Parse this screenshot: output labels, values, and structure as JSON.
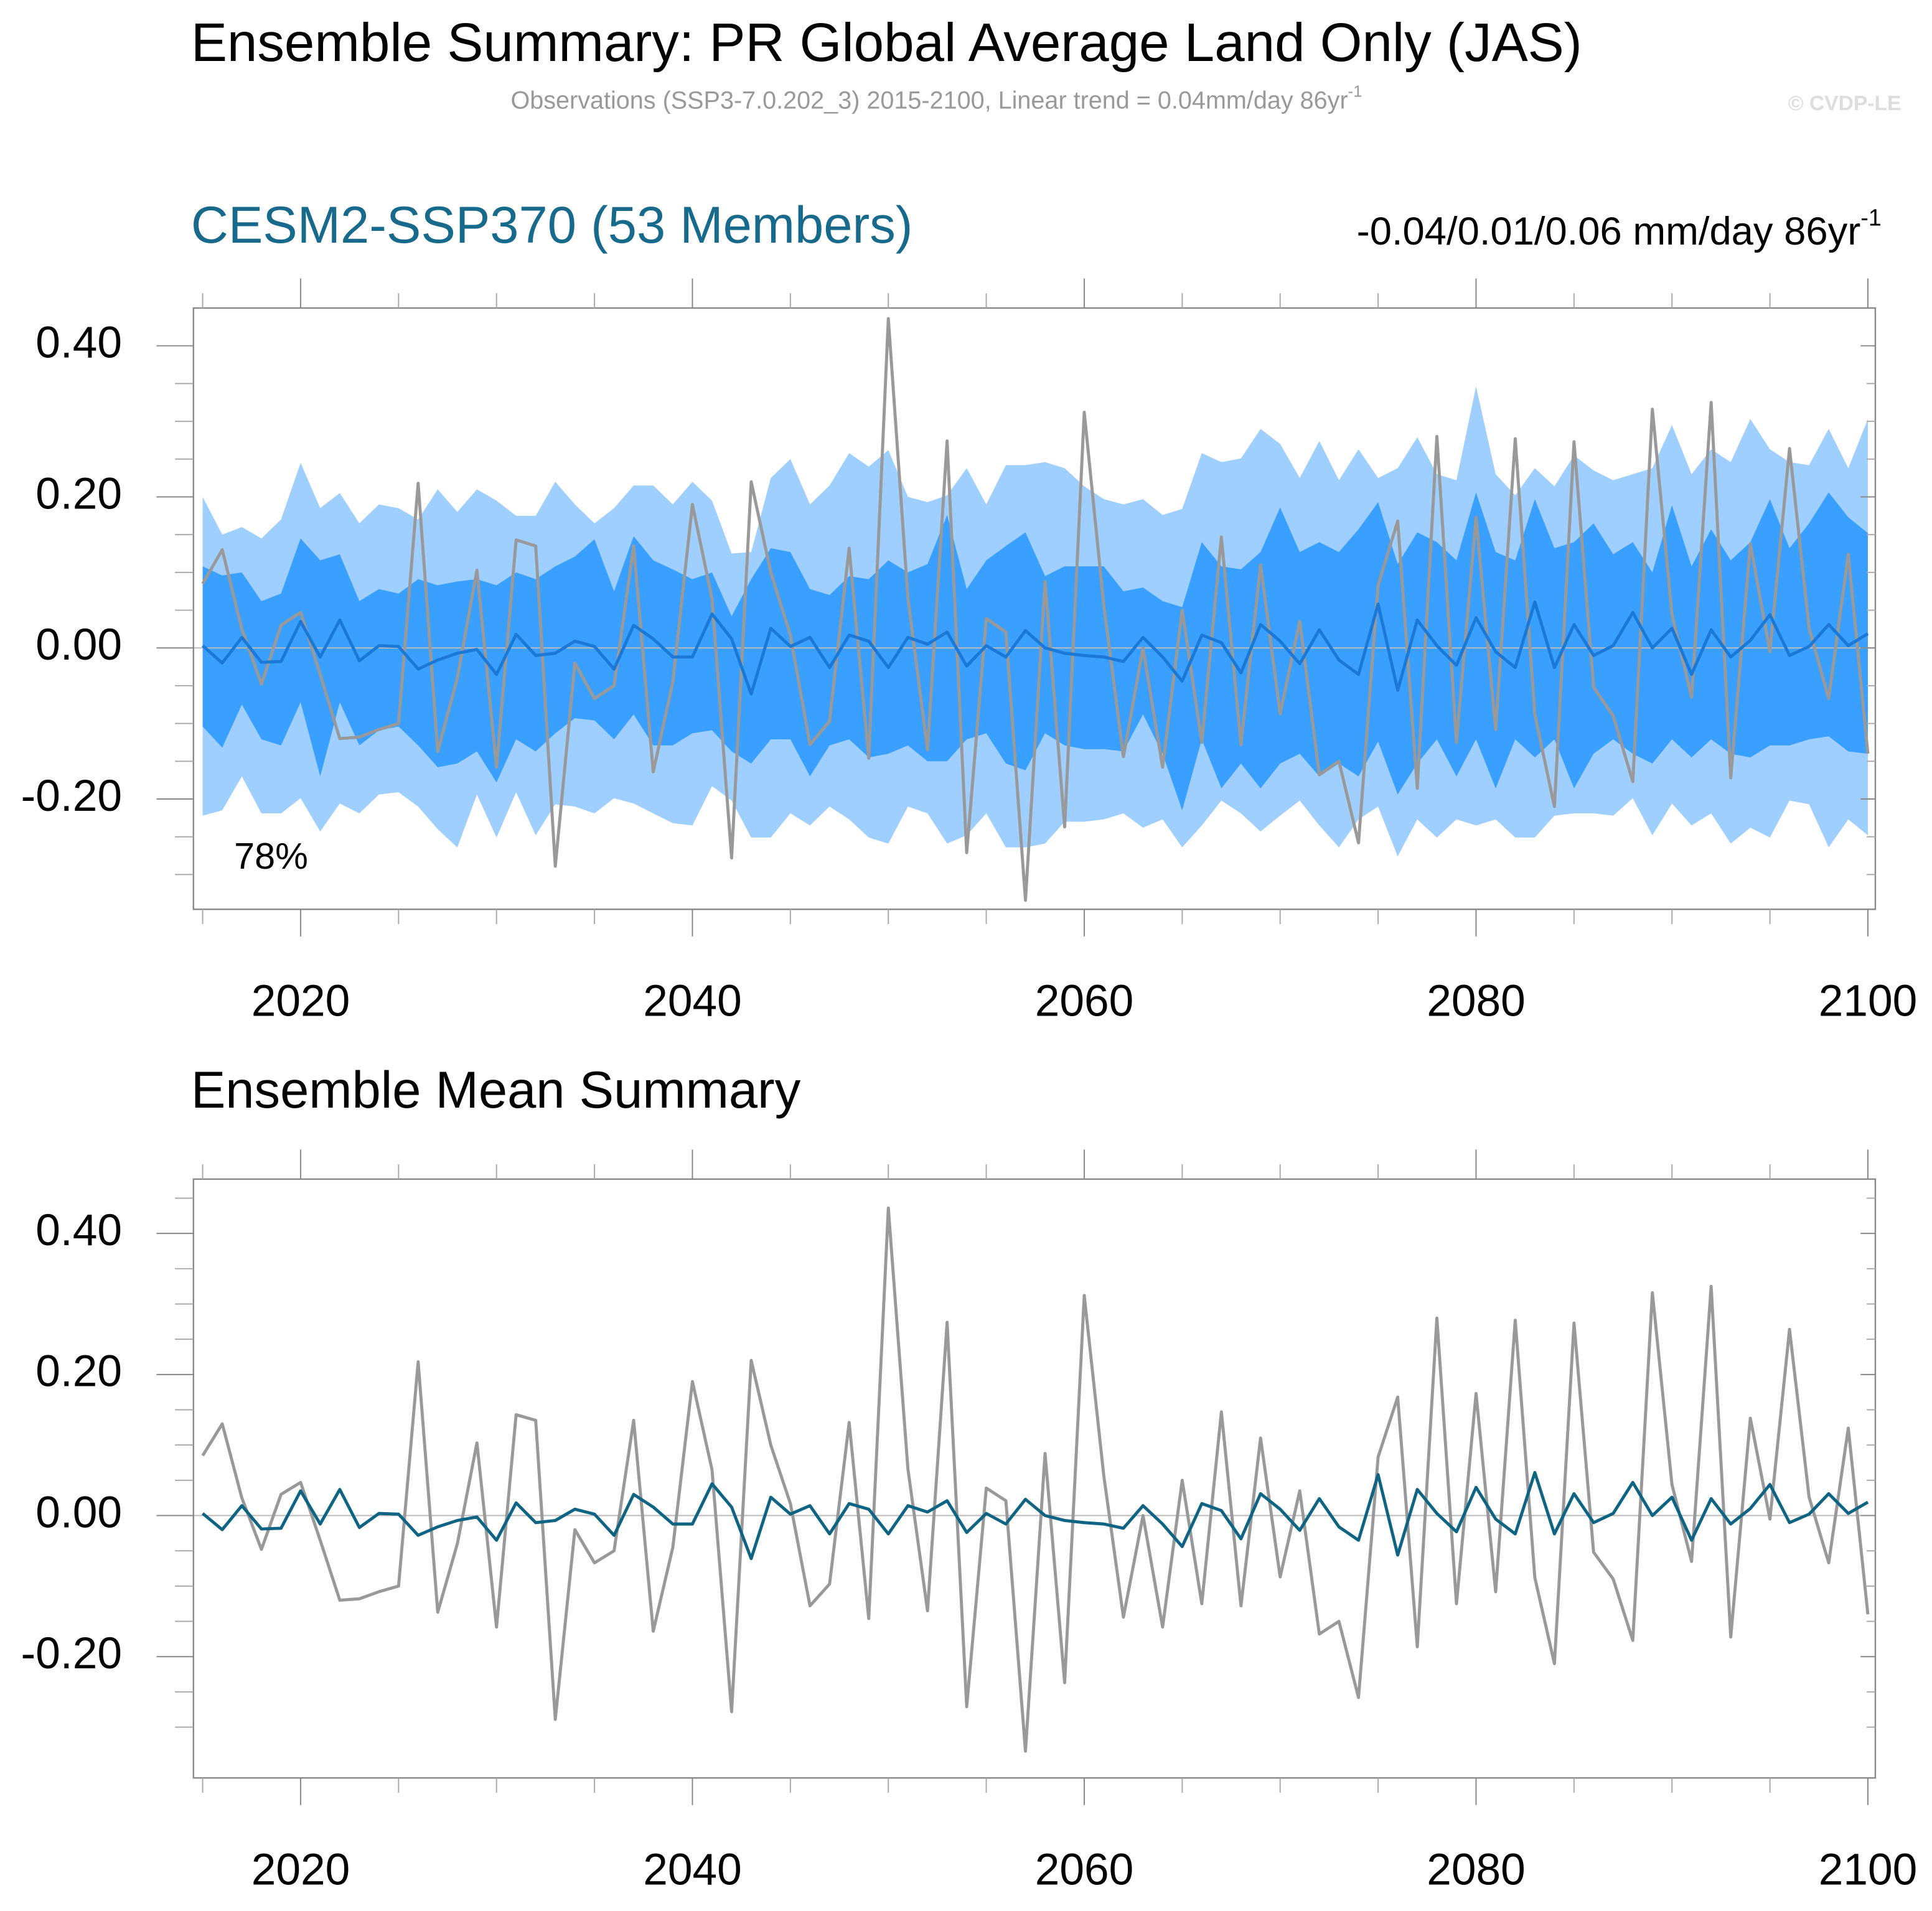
{
  "title": "Ensemble Summary: PR Global Average Land Only (JAS)",
  "subtitle": "Observations (SSP3-7.0.202_3) 2015-2100, Linear trend = 0.04mm/day 86yr",
  "subtitle_superscript": "-1",
  "credit": "© CVDP-LE",
  "chart_data": [
    {
      "type": "line",
      "title": "CESM2-SSP370 (53 Members)",
      "trend": "-0.04/0.01/0.06 mm/day 86yr",
      "trend_superscript": "-1",
      "annotation": "78%",
      "x": [
        2015,
        2016,
        2017,
        2018,
        2019,
        2020,
        2021,
        2022,
        2023,
        2024,
        2025,
        2026,
        2027,
        2028,
        2029,
        2030,
        2031,
        2032,
        2033,
        2034,
        2035,
        2036,
        2037,
        2038,
        2039,
        2040,
        2041,
        2042,
        2043,
        2044,
        2045,
        2046,
        2047,
        2048,
        2049,
        2050,
        2051,
        2052,
        2053,
        2054,
        2055,
        2056,
        2057,
        2058,
        2059,
        2060,
        2061,
        2062,
        2063,
        2064,
        2065,
        2066,
        2067,
        2068,
        2069,
        2070,
        2071,
        2072,
        2073,
        2074,
        2075,
        2076,
        2077,
        2078,
        2079,
        2080,
        2081,
        2082,
        2083,
        2084,
        2085,
        2086,
        2087,
        2088,
        2089,
        2090,
        2091,
        2092,
        2093,
        2094,
        2095,
        2096,
        2097,
        2098,
        2099,
        2100
      ],
      "bands": [
        {
          "color": "#9fcfff",
          "upper": [
            0.2,
            0.15,
            0.16,
            0.145,
            0.17,
            0.245,
            0.185,
            0.205,
            0.165,
            0.19,
            0.185,
            0.17,
            0.21,
            0.18,
            0.21,
            0.195,
            0.175,
            0.175,
            0.22,
            0.19,
            0.165,
            0.185,
            0.215,
            0.215,
            0.19,
            0.22,
            0.195,
            0.125,
            0.127,
            0.225,
            0.25,
            0.19,
            0.215,
            0.258,
            0.24,
            0.262,
            0.2,
            0.193,
            0.202,
            0.238,
            0.19,
            0.242,
            0.242,
            0.246,
            0.238,
            0.214,
            0.197,
            0.19,
            0.197,
            0.176,
            0.184,
            0.258,
            0.246,
            0.251,
            0.29,
            0.27,
            0.225,
            0.274,
            0.222,
            0.263,
            0.225,
            0.238,
            0.279,
            0.23,
            0.222,
            0.346,
            0.23,
            0.202,
            0.238,
            0.214,
            0.255,
            0.235,
            0.222,
            0.23,
            0.238,
            0.295,
            0.23,
            0.263,
            0.246,
            0.303,
            0.263,
            0.246,
            0.242,
            0.29,
            0.238,
            0.303
          ],
          "lower": [
            -0.222,
            -0.215,
            -0.17,
            -0.219,
            -0.219,
            -0.199,
            -0.243,
            -0.206,
            -0.219,
            -0.194,
            -0.191,
            -0.21,
            -0.24,
            -0.264,
            -0.194,
            -0.251,
            -0.191,
            -0.248,
            -0.207,
            -0.21,
            -0.219,
            -0.199,
            -0.206,
            -0.219,
            -0.232,
            -0.235,
            -0.183,
            -0.202,
            -0.251,
            -0.251,
            -0.219,
            -0.235,
            -0.21,
            -0.227,
            -0.251,
            -0.259,
            -0.21,
            -0.219,
            -0.259,
            -0.248,
            -0.219,
            -0.264,
            -0.264,
            -0.259,
            -0.23,
            -0.23,
            -0.227,
            -0.219,
            -0.238,
            -0.227,
            -0.264,
            -0.235,
            -0.202,
            -0.219,
            -0.243,
            -0.222,
            -0.202,
            -0.235,
            -0.264,
            -0.227,
            -0.21,
            -0.276,
            -0.227,
            -0.251,
            -0.227,
            -0.235,
            -0.227,
            -0.251,
            -0.251,
            -0.222,
            -0.219,
            -0.219,
            -0.222,
            -0.199,
            -0.248,
            -0.206,
            -0.235,
            -0.219,
            -0.259,
            -0.238,
            -0.251,
            -0.202,
            -0.207,
            -0.264,
            -0.227,
            -0.248
          ]
        },
        {
          "color": "#3aa0ff",
          "upper": [
            0.108,
            0.096,
            0.1,
            0.062,
            0.072,
            0.145,
            0.116,
            0.124,
            0.062,
            0.078,
            0.072,
            0.091,
            0.083,
            0.088,
            0.091,
            0.083,
            0.1,
            0.091,
            0.108,
            0.121,
            0.144,
            0.075,
            0.148,
            0.116,
            0.104,
            0.091,
            0.1,
            0.042,
            0.091,
            0.132,
            0.127,
            0.078,
            0.07,
            0.095,
            0.091,
            0.116,
            0.1,
            0.111,
            0.176,
            0.078,
            0.116,
            0.135,
            0.153,
            0.095,
            0.108,
            0.108,
            0.108,
            0.075,
            0.08,
            0.062,
            0.054,
            0.14,
            0.108,
            0.104,
            0.127,
            0.186,
            0.127,
            0.14,
            0.127,
            0.157,
            0.193,
            0.111,
            0.153,
            0.14,
            0.116,
            0.206,
            0.127,
            0.116,
            0.197,
            0.132,
            0.14,
            0.165,
            0.124,
            0.14,
            0.1,
            0.189,
            0.108,
            0.157,
            0.116,
            0.14,
            0.197,
            0.132,
            0.165,
            0.206,
            0.173,
            0.152
          ],
          "lower": [
            -0.104,
            -0.132,
            -0.075,
            -0.121,
            -0.129,
            -0.072,
            -0.17,
            -0.072,
            -0.129,
            -0.109,
            -0.104,
            -0.129,
            -0.158,
            -0.153,
            -0.137,
            -0.178,
            -0.121,
            -0.137,
            -0.113,
            -0.093,
            -0.096,
            -0.121,
            -0.088,
            -0.129,
            -0.129,
            -0.113,
            -0.109,
            -0.137,
            -0.153,
            -0.121,
            -0.121,
            -0.17,
            -0.129,
            -0.121,
            -0.145,
            -0.14,
            -0.129,
            -0.15,
            -0.15,
            -0.121,
            -0.113,
            -0.153,
            -0.162,
            -0.113,
            -0.129,
            -0.134,
            -0.134,
            -0.137,
            -0.088,
            -0.14,
            -0.215,
            -0.121,
            -0.186,
            -0.153,
            -0.186,
            -0.153,
            -0.14,
            -0.17,
            -0.153,
            -0.17,
            -0.124,
            -0.194,
            -0.153,
            -0.121,
            -0.17,
            -0.121,
            -0.186,
            -0.121,
            -0.145,
            -0.121,
            -0.186,
            -0.14,
            -0.121,
            -0.14,
            -0.153,
            -0.121,
            -0.145,
            -0.121,
            -0.14,
            -0.145,
            -0.129,
            -0.129,
            -0.121,
            -0.117,
            -0.137,
            -0.14
          ]
        }
      ],
      "series": [
        {
          "color": "#999999",
          "values": [
            0.085,
            0.13,
            0.025,
            -0.048,
            0.03,
            0.047,
            -0.035,
            -0.12,
            -0.118,
            -0.108,
            -0.1,
            0.218,
            -0.137,
            -0.04,
            0.103,
            -0.158,
            0.143,
            0.135,
            -0.289,
            -0.02,
            -0.067,
            -0.05,
            0.135,
            -0.164,
            -0.045,
            0.19,
            0.065,
            -0.278,
            0.22,
            0.1,
            0.017,
            -0.128,
            -0.097,
            0.132,
            -0.146,
            0.436,
            0.066,
            -0.135,
            0.274,
            -0.271,
            0.039,
            0.021,
            -0.334,
            0.088,
            -0.237,
            0.312,
            0.056,
            -0.144,
            0.0,
            -0.158,
            0.05,
            -0.125,
            0.147,
            -0.128,
            0.11,
            -0.087,
            0.035,
            -0.168,
            -0.15,
            -0.258,
            0.083,
            0.168,
            -0.186,
            0.28,
            -0.125,
            0.173,
            -0.108,
            0.277,
            -0.088,
            -0.21,
            0.273,
            -0.052,
            -0.09,
            -0.177,
            0.316,
            0.044,
            -0.065,
            0.325,
            -0.172,
            0.138,
            -0.005,
            0.264,
            0.026,
            -0.067,
            0.124,
            -0.14
          ]
        },
        {
          "color": "#1a78d6",
          "values": [
            0.003,
            -0.02,
            0.014,
            -0.019,
            -0.018,
            0.035,
            -0.012,
            0.037,
            -0.017,
            0.003,
            0.002,
            -0.028,
            -0.016,
            -0.007,
            -0.002,
            -0.035,
            0.018,
            -0.01,
            -0.007,
            0.009,
            0.002,
            -0.028,
            0.03,
            0.012,
            -0.012,
            -0.012,
            0.045,
            0.012,
            -0.061,
            0.026,
            0.002,
            0.014,
            -0.026,
            0.017,
            0.009,
            -0.026,
            0.014,
            0.005,
            0.021,
            -0.024,
            0.003,
            -0.012,
            0.023,
            0.0,
            -0.007,
            -0.01,
            -0.012,
            -0.018,
            0.014,
            -0.012,
            -0.044,
            0.017,
            0.007,
            -0.033,
            0.031,
            0.009,
            -0.021,
            0.024,
            -0.016,
            -0.035,
            0.058,
            -0.056,
            0.037,
            0.003,
            -0.023,
            0.04,
            -0.005,
            -0.026,
            0.061,
            -0.026,
            0.031,
            -0.01,
            0.003,
            0.047,
            0.0,
            0.026,
            -0.035,
            0.024,
            -0.012,
            0.01,
            0.044,
            -0.01,
            0.002,
            0.031,
            0.003,
            0.019
          ]
        }
      ],
      "reference_line": 0,
      "xlim": [
        2014.53,
        2100.38
      ],
      "xticks": [
        2020,
        2040,
        2060,
        2080,
        2100
      ],
      "xminorticks": [
        2015,
        2025,
        2030,
        2035,
        2045,
        2050,
        2055,
        2065,
        2070,
        2075,
        2085,
        2090,
        2095
      ],
      "ylim": [
        -0.346,
        0.45
      ],
      "yticks": [
        {
          "value": -0.2,
          "label": "-0.20"
        },
        {
          "value": 0,
          "label": "0.00"
        },
        {
          "value": 0.2,
          "label": "0.20"
        },
        {
          "value": 0.4,
          "label": "0.40"
        }
      ],
      "yminorticks": [
        -0.3,
        -0.25,
        -0.15,
        -0.1,
        -0.05,
        0.05,
        0.1,
        0.15,
        0.25,
        0.3,
        0.35
      ]
    },
    {
      "type": "line",
      "title": "Ensemble Mean Summary",
      "x": [
        2015,
        2016,
        2017,
        2018,
        2019,
        2020,
        2021,
        2022,
        2023,
        2024,
        2025,
        2026,
        2027,
        2028,
        2029,
        2030,
        2031,
        2032,
        2033,
        2034,
        2035,
        2036,
        2037,
        2038,
        2039,
        2040,
        2041,
        2042,
        2043,
        2044,
        2045,
        2046,
        2047,
        2048,
        2049,
        2050,
        2051,
        2052,
        2053,
        2054,
        2055,
        2056,
        2057,
        2058,
        2059,
        2060,
        2061,
        2062,
        2063,
        2064,
        2065,
        2066,
        2067,
        2068,
        2069,
        2070,
        2071,
        2072,
        2073,
        2074,
        2075,
        2076,
        2077,
        2078,
        2079,
        2080,
        2081,
        2082,
        2083,
        2084,
        2085,
        2086,
        2087,
        2088,
        2089,
        2090,
        2091,
        2092,
        2093,
        2094,
        2095,
        2096,
        2097,
        2098,
        2099,
        2100
      ],
      "series": [
        {
          "color": "#999999",
          "values": [
            0.085,
            0.13,
            0.025,
            -0.048,
            0.03,
            0.047,
            -0.035,
            -0.12,
            -0.118,
            -0.108,
            -0.1,
            0.218,
            -0.137,
            -0.04,
            0.103,
            -0.158,
            0.143,
            0.135,
            -0.289,
            -0.02,
            -0.067,
            -0.05,
            0.135,
            -0.164,
            -0.045,
            0.19,
            0.065,
            -0.278,
            0.22,
            0.1,
            0.017,
            -0.128,
            -0.097,
            0.132,
            -0.146,
            0.436,
            0.066,
            -0.135,
            0.274,
            -0.271,
            0.039,
            0.021,
            -0.334,
            0.088,
            -0.237,
            0.312,
            0.056,
            -0.144,
            0.0,
            -0.158,
            0.05,
            -0.125,
            0.147,
            -0.128,
            0.11,
            -0.087,
            0.035,
            -0.168,
            -0.15,
            -0.258,
            0.083,
            0.168,
            -0.186,
            0.28,
            -0.125,
            0.173,
            -0.108,
            0.277,
            -0.088,
            -0.21,
            0.273,
            -0.052,
            -0.09,
            -0.177,
            0.316,
            0.044,
            -0.065,
            0.325,
            -0.172,
            0.138,
            -0.005,
            0.264,
            0.026,
            -0.067,
            0.124,
            -0.14
          ]
        },
        {
          "color": "#0e6482",
          "values": [
            0.003,
            -0.02,
            0.014,
            -0.019,
            -0.018,
            0.035,
            -0.012,
            0.037,
            -0.017,
            0.003,
            0.002,
            -0.028,
            -0.016,
            -0.007,
            -0.002,
            -0.035,
            0.018,
            -0.01,
            -0.007,
            0.009,
            0.002,
            -0.028,
            0.03,
            0.012,
            -0.012,
            -0.012,
            0.045,
            0.012,
            -0.061,
            0.026,
            0.002,
            0.014,
            -0.026,
            0.017,
            0.009,
            -0.026,
            0.014,
            0.005,
            0.021,
            -0.024,
            0.003,
            -0.012,
            0.023,
            0.0,
            -0.007,
            -0.01,
            -0.012,
            -0.018,
            0.014,
            -0.012,
            -0.044,
            0.017,
            0.007,
            -0.033,
            0.031,
            0.009,
            -0.021,
            0.024,
            -0.016,
            -0.035,
            0.058,
            -0.056,
            0.037,
            0.003,
            -0.023,
            0.04,
            -0.005,
            -0.026,
            0.061,
            -0.026,
            0.031,
            -0.01,
            0.003,
            0.047,
            0.0,
            0.026,
            -0.035,
            0.024,
            -0.012,
            0.01,
            0.044,
            -0.01,
            0.002,
            0.031,
            0.003,
            0.019
          ]
        }
      ],
      "reference_line": 0,
      "xlim": [
        2014.53,
        2100.38
      ],
      "xticks": [
        2020,
        2040,
        2060,
        2080,
        2100
      ],
      "xminorticks": [
        2015,
        2025,
        2030,
        2035,
        2045,
        2050,
        2055,
        2065,
        2070,
        2075,
        2085,
        2090,
        2095
      ],
      "ylim": [
        -0.372,
        0.477
      ],
      "yticks": [
        {
          "value": -0.2,
          "label": "-0.20"
        },
        {
          "value": 0,
          "label": "0.00"
        },
        {
          "value": 0.2,
          "label": "0.20"
        },
        {
          "value": 0.4,
          "label": "0.40"
        }
      ],
      "yminorticks": [
        -0.3,
        -0.25,
        -0.15,
        -0.1,
        -0.05,
        0.05,
        0.1,
        0.15,
        0.25,
        0.3,
        0.35,
        0.45
      ]
    }
  ]
}
